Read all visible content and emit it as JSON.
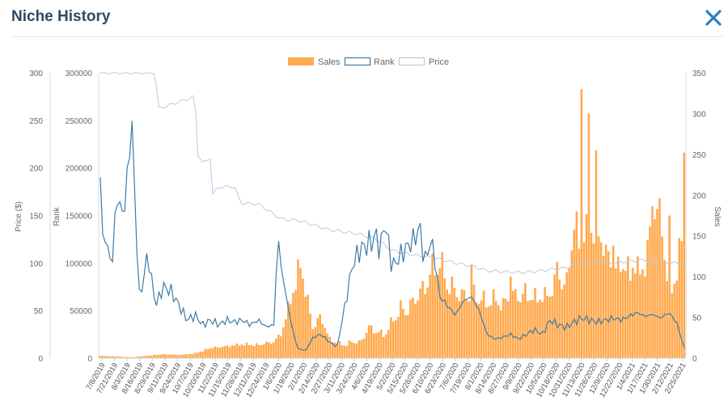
{
  "modal": {
    "title": "Niche History",
    "close_label": "Close"
  },
  "chart_data": {
    "type": "bar+line",
    "legend": [
      "Sales",
      "Rank",
      "Price"
    ],
    "legend_position": "top-center",
    "axes": {
      "left_price": {
        "label": "Price ($)",
        "range": [
          0,
          300
        ],
        "ticks": [
          "300",
          "250",
          "200",
          "150",
          "100",
          "50",
          "0"
        ]
      },
      "left_rank": {
        "label": "Rank",
        "range": [
          0,
          300000
        ],
        "ticks": [
          "300000",
          "250000",
          "200000",
          "150000",
          "100000",
          "50000",
          "0"
        ]
      },
      "right_sales": {
        "label": "Sales",
        "range": [
          0,
          350
        ],
        "ticks": [
          "350",
          "300",
          "250",
          "200",
          "150",
          "100",
          "50",
          "0"
        ]
      }
    },
    "x_tick_labels": [
      "7/8/2019",
      "7/21/2019",
      "8/3/2019",
      "8/16/2019",
      "8/29/2019",
      "9/11/2019",
      "9/24/2019",
      "10/7/2019",
      "10/20/2019",
      "11/2/2019",
      "11/15/2019",
      "11/28/2019",
      "12/11/2019",
      "12/24/2019",
      "1/6/2020",
      "1/19/2020",
      "2/1/2020",
      "2/14/2020",
      "2/27/2020",
      "3/11/2020",
      "3/24/2020",
      "4/6/2020",
      "4/19/2020",
      "5/2/2020",
      "5/15/2020",
      "5/28/2020",
      "6/10/2020",
      "6/23/2020",
      "7/6/2020",
      "7/19/2020",
      "8/1/2020",
      "8/14/2020",
      "8/27/2020",
      "9/9/2020",
      "9/22/2020",
      "10/5/2020",
      "10/18/2020",
      "10/31/2020",
      "11/13/2020",
      "11/26/2020",
      "12/9/2020",
      "12/22/2020",
      "1/4/2021",
      "1/17/2021",
      "1/30/2021",
      "2/12/2021",
      "2/25/2021"
    ],
    "colors": {
      "sales": "#ffa94d",
      "rank": "#3d7ba6",
      "price": "#b7cbe0"
    },
    "sales_anchors": [
      [
        0,
        3
      ],
      [
        2,
        2
      ],
      [
        4,
        1
      ],
      [
        8,
        5
      ],
      [
        10,
        4
      ],
      [
        12,
        6
      ],
      [
        14,
        13
      ],
      [
        16,
        15
      ],
      [
        18,
        18
      ],
      [
        20,
        17
      ],
      [
        22,
        21
      ],
      [
        23,
        32
      ],
      [
        24,
        70
      ],
      [
        25,
        108
      ],
      [
        25.5,
        125
      ],
      [
        26,
        88
      ],
      [
        27,
        38
      ],
      [
        28,
        55
      ],
      [
        29,
        25
      ],
      [
        30,
        20
      ],
      [
        31,
        17
      ],
      [
        32,
        22
      ],
      [
        33,
        20
      ],
      [
        34,
        40
      ],
      [
        35,
        35
      ],
      [
        36,
        30
      ],
      [
        37,
        48
      ],
      [
        38,
        65
      ],
      [
        39,
        62
      ],
      [
        40,
        80
      ],
      [
        41,
        90
      ],
      [
        42,
        115
      ],
      [
        43,
        128
      ],
      [
        44,
        98
      ],
      [
        45,
        88
      ],
      [
        46,
        80
      ],
      [
        47,
        85
      ],
      [
        48,
        80
      ],
      [
        49,
        72
      ],
      [
        50,
        78
      ],
      [
        51,
        68
      ],
      [
        52,
        82
      ],
      [
        53,
        80
      ],
      [
        54,
        85
      ],
      [
        55,
        78
      ],
      [
        56,
        80
      ],
      [
        57,
        82
      ],
      [
        58,
        110
      ],
      [
        59,
        88
      ],
      [
        60,
        170
      ],
      [
        61,
        158
      ],
      [
        62,
        165
      ],
      [
        63,
        160
      ],
      [
        64,
        140
      ],
      [
        65,
        112
      ],
      [
        66,
        120
      ],
      [
        67,
        115
      ],
      [
        68,
        118
      ],
      [
        69,
        110
      ],
      [
        70,
        195
      ],
      [
        71,
        180
      ],
      [
        72,
        85
      ],
      [
        73,
        98
      ],
      [
        74,
        205
      ]
    ],
    "sales_spikes": [
      [
        47,
        115
      ],
      [
        52,
        100
      ],
      [
        58,
        118
      ],
      [
        61,
        330
      ],
      [
        62,
        300
      ],
      [
        63,
        255
      ],
      [
        65,
        138
      ],
      [
        71,
        196
      ],
      [
        72,
        175
      ],
      [
        74,
        252
      ]
    ],
    "rank_anchors": [
      [
        0,
        190000
      ],
      [
        0.3,
        130000
      ],
      [
        1,
        115000
      ],
      [
        1.5,
        95000
      ],
      [
        2,
        170000
      ],
      [
        3,
        150000
      ],
      [
        4,
        250000
      ],
      [
        4.5,
        140000
      ],
      [
        5,
        60000
      ],
      [
        6,
        110000
      ],
      [
        7,
        55000
      ],
      [
        8,
        75000
      ],
      [
        9,
        70000
      ],
      [
        10,
        55000
      ],
      [
        11,
        40000
      ],
      [
        12,
        45000
      ],
      [
        13,
        35000
      ],
      [
        14,
        40000
      ],
      [
        15,
        35000
      ],
      [
        16,
        40000
      ],
      [
        17,
        38000
      ],
      [
        18,
        40000
      ],
      [
        19,
        35000
      ],
      [
        20,
        40000
      ],
      [
        21,
        33000
      ],
      [
        22,
        35000
      ],
      [
        22.5,
        130000
      ],
      [
        23,
        90000
      ],
      [
        24,
        45000
      ],
      [
        24.5,
        25000
      ],
      [
        25,
        10000
      ],
      [
        26,
        8000
      ],
      [
        27,
        22000
      ],
      [
        28,
        25000
      ],
      [
        29,
        17000
      ],
      [
        30,
        12000
      ],
      [
        31,
        55000
      ],
      [
        32,
        100000
      ],
      [
        33,
        115000
      ],
      [
        34,
        120000
      ],
      [
        35,
        128000
      ],
      [
        35.5,
        110000
      ],
      [
        36,
        148000
      ],
      [
        36.5,
        120000
      ],
      [
        37,
        95000
      ],
      [
        38,
        108000
      ],
      [
        39,
        118000
      ],
      [
        40,
        128000
      ],
      [
        40.5,
        140000
      ],
      [
        41,
        100000
      ],
      [
        42,
        125000
      ],
      [
        43,
        65000
      ],
      [
        44,
        55000
      ],
      [
        45,
        45000
      ],
      [
        46,
        60000
      ],
      [
        47,
        65000
      ],
      [
        48,
        50000
      ],
      [
        49,
        25000
      ],
      [
        50,
        20000
      ],
      [
        51,
        22000
      ],
      [
        52,
        25000
      ],
      [
        53,
        20000
      ],
      [
        54,
        25000
      ],
      [
        55,
        30000
      ],
      [
        56,
        25000
      ],
      [
        57,
        40000
      ],
      [
        58,
        35000
      ],
      [
        59,
        32000
      ],
      [
        60,
        38000
      ],
      [
        61,
        42000
      ],
      [
        62,
        40000
      ],
      [
        63,
        38000
      ],
      [
        64,
        40000
      ],
      [
        65,
        42000
      ],
      [
        66,
        40000
      ],
      [
        67,
        44000
      ],
      [
        68,
        48000
      ],
      [
        69,
        44000
      ],
      [
        70,
        46000
      ],
      [
        71,
        42000
      ],
      [
        72,
        48000
      ],
      [
        73,
        38000
      ],
      [
        74,
        10000
      ]
    ],
    "price_anchors": [
      [
        0,
        300
      ],
      [
        4,
        300
      ],
      [
        7,
        300
      ],
      [
        7.3,
        262
      ],
      [
        12,
        275
      ],
      [
        12.3,
        215
      ],
      [
        13,
        205
      ],
      [
        14,
        211
      ],
      [
        14.2,
        172
      ],
      [
        15,
        180
      ],
      [
        17,
        180
      ],
      [
        17.8,
        163
      ],
      [
        20,
        162
      ],
      [
        23,
        146
      ],
      [
        25,
        145
      ],
      [
        27,
        140
      ],
      [
        29,
        135
      ],
      [
        33,
        130
      ],
      [
        35,
        125
      ],
      [
        37,
        113
      ],
      [
        40,
        108
      ],
      [
        41,
        107
      ],
      [
        43,
        104
      ],
      [
        45,
        100
      ],
      [
        47,
        97
      ],
      [
        49,
        92
      ],
      [
        51,
        91
      ],
      [
        53,
        90
      ],
      [
        55,
        91
      ],
      [
        57,
        93
      ],
      [
        59,
        95
      ],
      [
        61,
        101
      ],
      [
        63,
        102
      ],
      [
        65,
        100
      ],
      [
        67,
        102
      ],
      [
        69,
        103
      ],
      [
        71,
        101
      ],
      [
        73,
        100
      ],
      [
        74,
        98
      ]
    ]
  }
}
